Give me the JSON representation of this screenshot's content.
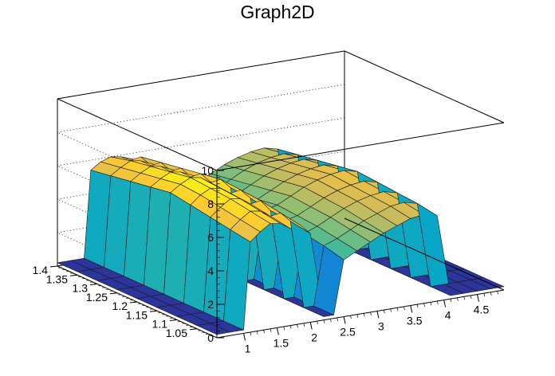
{
  "chart_data": {
    "type": "surface",
    "title": "Graph2D",
    "xlabel": "",
    "ylabel": "",
    "zlabel": "",
    "x_range": [
      0.6,
      4.9
    ],
    "y_range": [
      1.0,
      1.4
    ],
    "z_range": [
      0,
      10
    ],
    "x_ticks": [
      "1",
      "1.5",
      "2",
      "2.5",
      "3",
      "3.5",
      "4",
      "4.5"
    ],
    "x_tick_values": [
      1,
      1.5,
      2,
      2.5,
      3,
      3.5,
      4,
      4.5
    ],
    "y_ticks": [
      "1.05",
      "1.1",
      "1.15",
      "1.2",
      "1.25",
      "1.3",
      "1.35",
      "1.4"
    ],
    "y_tick_values": [
      1.05,
      1.1,
      1.15,
      1.2,
      1.25,
      1.3,
      1.35,
      1.4
    ],
    "z_ticks": [
      "0",
      "2",
      "4",
      "6",
      "8",
      "10"
    ],
    "z_tick_values": [
      0,
      2,
      4,
      6,
      8,
      10
    ],
    "grid": true,
    "palette": [
      "#352a87",
      "#0f5cdd",
      "#1481d6",
      "#06a4ca",
      "#2eb7a4",
      "#87bf77",
      "#d1bb59",
      "#fec832",
      "#f9fb0e"
    ],
    "surface_x": [
      0.6,
      0.8,
      1.0,
      1.1,
      1.25,
      1.4,
      1.55,
      1.7,
      1.85,
      2.0,
      2.2,
      2.35,
      2.5,
      2.7,
      2.9,
      3.1,
      3.3,
      3.5,
      3.7,
      3.9,
      4.1,
      4.3,
      4.5,
      4.7,
      4.9
    ],
    "surface_y": [
      1.0,
      1.05,
      1.1,
      1.15,
      1.2,
      1.25,
      1.3,
      1.35,
      1.4
    ],
    "surface_z": [
      [
        0.2,
        0.2,
        0.2,
        0.2,
        0.2,
        0.2,
        0.2,
        0.2,
        0.2
      ],
      [
        0.2,
        0.2,
        0.2,
        0.2,
        0.2,
        0.2,
        0.2,
        0.2,
        0.2
      ],
      [
        0.2,
        0.2,
        0.2,
        0.2,
        0.2,
        0.2,
        0.2,
        0.2,
        0.2
      ],
      [
        5.4,
        5.6,
        5.8,
        6.0,
        6.2,
        6.0,
        5.8,
        5.6,
        5.4
      ],
      [
        5.9,
        6.1,
        6.3,
        6.5,
        6.6,
        6.4,
        6.2,
        6.0,
        5.8
      ],
      [
        6.3,
        6.5,
        6.7,
        6.8,
        6.9,
        6.7,
        6.5,
        6.3,
        6.0
      ],
      [
        6.2,
        6.4,
        6.6,
        6.7,
        6.8,
        6.6,
        6.4,
        6.2,
        5.9
      ],
      [
        5.8,
        6.0,
        6.2,
        6.3,
        6.4,
        6.2,
        6.0,
        5.8,
        5.6
      ],
      [
        5.9,
        6.1,
        6.3,
        6.4,
        6.5,
        6.3,
        6.1,
        5.9,
        5.7
      ],
      [
        5.3,
        5.5,
        5.6,
        5.8,
        5.9,
        5.7,
        5.5,
        5.3,
        5.1
      ],
      [
        0.2,
        0.2,
        0.2,
        0.2,
        0.2,
        0.2,
        0.2,
        0.2,
        0.2
      ],
      [
        0.2,
        0.2,
        0.2,
        0.2,
        0.2,
        0.2,
        0.2,
        0.2,
        0.2
      ],
      [
        3.4,
        3.7,
        3.9,
        4.1,
        4.2,
        4.0,
        3.8,
        3.6,
        3.4
      ],
      [
        3.8,
        4.0,
        4.2,
        4.3,
        4.4,
        4.2,
        4.0,
        3.8,
        3.6
      ],
      [
        4.2,
        4.4,
        4.6,
        4.7,
        4.8,
        4.6,
        4.4,
        4.2,
        4.0
      ],
      [
        4.6,
        4.8,
        5.0,
        5.1,
        5.2,
        5.0,
        4.8,
        4.6,
        4.4
      ],
      [
        4.9,
        5.1,
        5.3,
        5.4,
        5.5,
        5.3,
        5.1,
        4.9,
        4.7
      ],
      [
        5.2,
        5.4,
        5.5,
        5.6,
        5.7,
        5.5,
        5.3,
        5.1,
        4.9
      ],
      [
        5.3,
        5.5,
        5.6,
        5.7,
        5.8,
        5.6,
        5.4,
        5.2,
        5.0
      ],
      [
        5.1,
        5.3,
        5.4,
        5.5,
        5.6,
        5.4,
        5.2,
        5.0,
        4.8
      ],
      [
        0.2,
        0.2,
        0.2,
        0.2,
        0.2,
        0.2,
        0.2,
        0.2,
        0.2
      ],
      [
        0.2,
        0.2,
        0.2,
        0.2,
        0.2,
        0.2,
        0.2,
        0.2,
        0.2
      ],
      [
        0.2,
        0.2,
        0.2,
        0.2,
        0.2,
        0.2,
        0.2,
        0.2,
        0.2
      ],
      [
        0.2,
        0.2,
        0.2,
        0.2,
        0.2,
        0.2,
        0.2,
        0.2,
        0.2
      ],
      [
        0.2,
        0.2,
        0.2,
        0.2,
        0.2,
        0.2,
        0.2,
        0.2,
        0.2
      ]
    ]
  }
}
